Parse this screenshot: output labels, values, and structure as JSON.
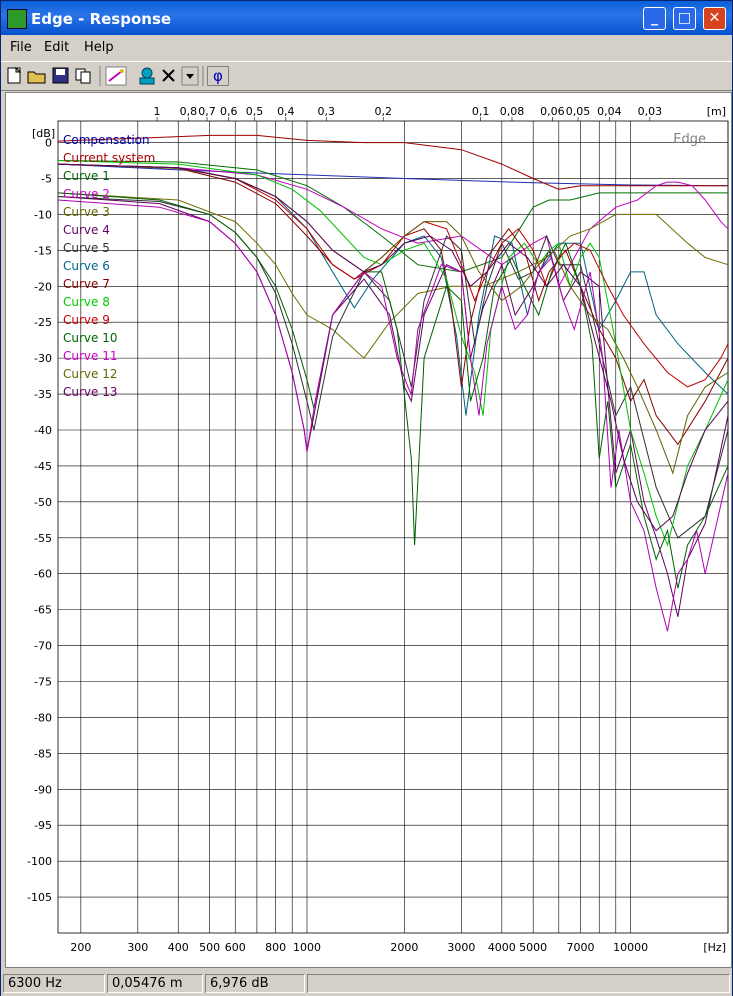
{
  "window": {
    "title": "Edge - Response"
  },
  "menu": [
    {
      "label": "File",
      "key": "F"
    },
    {
      "label": "Edit",
      "key": "E"
    },
    {
      "label": "Help",
      "key": "H"
    }
  ],
  "toolbar": {
    "phi_label": "φ"
  },
  "chart": {
    "watermark": "Edge",
    "y_unit": "[dB]",
    "x_unit": "[Hz]",
    "top_unit": "[m]"
  },
  "legend": [
    {
      "name": "Compensation",
      "color": "#0000aa"
    },
    {
      "name": "Current system",
      "color": "#aa0000"
    },
    {
      "name": "Curve 1",
      "color": "#006600"
    },
    {
      "name": "Curve 2",
      "color": "#cc00cc"
    },
    {
      "name": "Curve 3",
      "color": "#666600"
    },
    {
      "name": "Curve 4",
      "color": "#660066"
    },
    {
      "name": "Curve 5",
      "color": "#333333"
    },
    {
      "name": "Curve 6",
      "color": "#006688"
    },
    {
      "name": "Curve 7",
      "color": "#880000"
    },
    {
      "name": "Curve 8",
      "color": "#00cc00"
    },
    {
      "name": "Curve 9",
      "color": "#cc0000"
    },
    {
      "name": "Curve 10",
      "color": "#006600"
    },
    {
      "name": "Curve 11",
      "color": "#cc00cc"
    },
    {
      "name": "Curve 12",
      "color": "#666600"
    },
    {
      "name": "Curve 13",
      "color": "#660066"
    }
  ],
  "chart_data": {
    "type": "line",
    "xlabel": "[Hz]",
    "ylabel": "[dB]",
    "xscale": "log",
    "xlim": [
      170,
      20000
    ],
    "ylim": [
      -110,
      3
    ],
    "grid": true,
    "x_ticks": [
      {
        "v": 200,
        "t": "200"
      },
      {
        "v": 300,
        "t": "300"
      },
      {
        "v": 400,
        "t": "400"
      },
      {
        "v": 500,
        "t": "500"
      },
      {
        "v": 600,
        "t": "600"
      },
      {
        "v": 800,
        "t": "800"
      },
      {
        "v": 1000,
        "t": "1000"
      },
      {
        "v": 2000,
        "t": "2000"
      },
      {
        "v": 3000,
        "t": "3000"
      },
      {
        "v": 4000,
        "t": "4000"
      },
      {
        "v": 5000,
        "t": "5000"
      },
      {
        "v": 7000,
        "t": "7000"
      },
      {
        "v": 10000,
        "t": "10000"
      }
    ],
    "x_minor": [
      700,
      900,
      6000,
      8000,
      9000,
      20000
    ],
    "top_ticks": [
      {
        "v": 344,
        "t": "1"
      },
      {
        "v": 430,
        "t": "0,8"
      },
      {
        "v": 491,
        "t": "0,7"
      },
      {
        "v": 573,
        "t": "0,6"
      },
      {
        "v": 688,
        "t": "0,5"
      },
      {
        "v": 860,
        "t": "0,4"
      },
      {
        "v": 1147,
        "t": "0,3"
      },
      {
        "v": 1720,
        "t": "0,2"
      },
      {
        "v": 3440,
        "t": "0,1"
      },
      {
        "v": 4300,
        "t": "0,08"
      },
      {
        "v": 5733,
        "t": "0,06"
      },
      {
        "v": 6880,
        "t": "0,05"
      },
      {
        "v": 8600,
        "t": "0,04"
      },
      {
        "v": 11467,
        "t": "0,03"
      }
    ],
    "y_ticks": [
      0,
      -5,
      -10,
      -15,
      -20,
      -25,
      -30,
      -35,
      -40,
      -45,
      -50,
      -55,
      -60,
      -65,
      -70,
      -75,
      -80,
      -85,
      -90,
      -95,
      -100,
      -105
    ],
    "y_tick_labels": [
      "0",
      "-5",
      "-10",
      "-15",
      "-20",
      "-25",
      "-30",
      "-35",
      "-40",
      "-45",
      "-50",
      "-55",
      "-60",
      "-65",
      "-70",
      "-75",
      "-80",
      "-85",
      "-90",
      "-95",
      "-100",
      "-105"
    ],
    "series": [
      {
        "name": "Compensation",
        "color": "#1e2fb0",
        "x": [
          170,
          400,
          1000,
          2000,
          5000,
          10000,
          20000
        ],
        "y": [
          -3,
          -3.8,
          -4.5,
          -5,
          -5.6,
          -5.9,
          -6
        ]
      },
      {
        "name": "Current system",
        "color": "#a00000",
        "x": [
          170,
          300,
          500,
          700,
          1000,
          1500,
          2000,
          3000,
          4000,
          5000,
          6000,
          7000,
          9000,
          12000,
          15000,
          20000
        ],
        "y": [
          0.2,
          0.6,
          1,
          1,
          0.3,
          0,
          0,
          -1,
          -3,
          -5,
          -6.5,
          -6,
          -6,
          -6,
          -6,
          -6
        ]
      },
      {
        "name": "Curve 1",
        "color": "#007000",
        "x": [
          170,
          400,
          700,
          1000,
          1300,
          1700,
          2200,
          3000,
          4000,
          5000,
          5600,
          6500,
          8000,
          10000,
          14000,
          20000
        ],
        "y": [
          -2.5,
          -2.7,
          -3.8,
          -6,
          -9,
          -13,
          -17,
          -18,
          -16,
          -9,
          -8,
          -8,
          -7,
          -7,
          -7,
          -7
        ]
      },
      {
        "name": "Curve 2",
        "color": "#c000c0",
        "x": [
          170,
          400,
          700,
          1000,
          1300,
          1700,
          2200,
          3000,
          4000,
          5000,
          5500,
          6000,
          6700,
          7500,
          9000,
          10500,
          12000,
          13000,
          14000,
          15500,
          17000,
          19000,
          20000
        ],
        "y": [
          -3,
          -3.5,
          -4.5,
          -6.5,
          -9,
          -12,
          -14,
          -13,
          -17,
          -14,
          -13,
          -20,
          -16,
          -12,
          -9,
          -8,
          -6,
          -5.5,
          -5.5,
          -6,
          -8,
          -11,
          -12
        ]
      },
      {
        "name": "Curve 3",
        "color": "#707000",
        "x": [
          170,
          400,
          600,
          700,
          800,
          900,
          1000,
          1200,
          1500,
          1800,
          2200,
          2800,
          3500,
          4500,
          5500,
          6500,
          7500,
          9000,
          10000,
          12000,
          15000,
          17000,
          20000
        ],
        "y": [
          -7,
          -8,
          -11,
          -14,
          -17,
          -21,
          -24,
          -26,
          -30,
          -25,
          -21,
          -20,
          -20,
          -18,
          -16,
          -13,
          -12,
          -10,
          -10,
          -10,
          -14,
          -16,
          -17
        ]
      },
      {
        "name": "Curve 4",
        "color": "#600060",
        "x": [
          170,
          350,
          500,
          600,
          700,
          800,
          900,
          980,
          1000,
          1050,
          1200,
          1500,
          1800,
          2000,
          2100,
          2300,
          2700,
          3000,
          3200,
          3500,
          4000,
          4400,
          5000,
          5600,
          6200,
          7000,
          8000,
          8500,
          9000,
          10000,
          11000,
          12000,
          13000,
          14000,
          15000,
          17000,
          20000
        ],
        "y": [
          -7.5,
          -8.5,
          -11,
          -14,
          -18,
          -24,
          -32,
          -40,
          -43,
          -38,
          -24,
          -19,
          -24,
          -34,
          -36,
          -24,
          -17,
          -18,
          -30,
          -23,
          -17,
          -24,
          -20,
          -15,
          -22,
          -18,
          -20,
          -34,
          -46,
          -40,
          -50,
          -55,
          -60,
          -66,
          -58,
          -53,
          -38
        ]
      },
      {
        "name": "Curve 5",
        "color": "#303030",
        "x": [
          170,
          350,
          500,
          600,
          700,
          800,
          900,
          1000,
          1050,
          1200,
          1500,
          1800,
          2000,
          2100,
          2300,
          2700,
          3000,
          3300,
          3600,
          4000,
          4500,
          5000,
          5500,
          6000,
          7000,
          8000,
          9000,
          10000,
          12000,
          14000,
          17000,
          20000
        ],
        "y": [
          -7.5,
          -8.2,
          -10,
          -12.5,
          -16,
          -21,
          -28,
          -36,
          -40,
          -27,
          -18,
          -22,
          -30,
          -34,
          -22,
          -13,
          -15,
          -28,
          -20,
          -14,
          -19,
          -18,
          -13,
          -17,
          -17,
          -28,
          -38,
          -34,
          -48,
          -55,
          -52,
          -40
        ]
      },
      {
        "name": "Curve 6",
        "color": "#006080",
        "x": [
          170,
          400,
          600,
          800,
          1000,
          1200,
          1400,
          1600,
          2000,
          2300,
          2600,
          2900,
          3100,
          3400,
          3800,
          4300,
          4800,
          5200,
          6000,
          7000,
          8000,
          9000,
          10000,
          11000,
          12000,
          14000,
          17000,
          20000
        ],
        "y": [
          -3,
          -3.5,
          -5,
          -7.5,
          -12,
          -18,
          -23,
          -19,
          -14,
          -13,
          -16,
          -27,
          -38,
          -24,
          -13,
          -14,
          -24,
          -18,
          -14,
          -14,
          -26,
          -22,
          -18,
          -18,
          -24,
          -28,
          -32,
          -35
        ]
      },
      {
        "name": "Curve 7",
        "color": "#880000",
        "x": [
          170,
          400,
          600,
          800,
          1000,
          1200,
          1400,
          1700,
          2000,
          2300,
          2600,
          2800,
          3000,
          3200,
          3600,
          4200,
          4700,
          5200,
          5600,
          6300,
          7000,
          8000,
          9000,
          10000,
          11000,
          12000,
          14000,
          17000,
          20000
        ],
        "y": [
          -3,
          -3.6,
          -5.5,
          -8.5,
          -13,
          -17,
          -19,
          -16,
          -13,
          -12,
          -15,
          -23,
          -34,
          -25,
          -16,
          -12,
          -15,
          -22,
          -18,
          -15,
          -20,
          -26,
          -30,
          -36,
          -33,
          -38,
          -42,
          -36,
          -30
        ]
      },
      {
        "name": "Curve 8",
        "color": "#00c000",
        "x": [
          170,
          400,
          700,
          900,
          1100,
          1300,
          1500,
          1700,
          2000,
          2300,
          2700,
          3000,
          3300,
          3500,
          3700,
          4200,
          4700,
          5200,
          5600,
          6000,
          6500,
          7000,
          7500,
          8000,
          9000,
          10000,
          11000,
          12000,
          13000,
          15000,
          17000,
          20000
        ],
        "y": [
          -2.5,
          -3,
          -4.5,
          -6.5,
          -9.5,
          -13,
          -16,
          -17,
          -15,
          -14,
          -19,
          -27,
          -32,
          -38,
          -26,
          -16,
          -14,
          -17,
          -15,
          -14,
          -20,
          -16,
          -14,
          -16,
          -28,
          -40,
          -46,
          -52,
          -56,
          -45,
          -40,
          -33
        ]
      },
      {
        "name": "Curve 9",
        "color": "#c00000",
        "x": [
          170,
          400,
          600,
          800,
          1000,
          1200,
          1400,
          1700,
          2000,
          2300,
          2700,
          3000,
          3300,
          3600,
          4000,
          4500,
          5000,
          5500,
          6000,
          6700,
          7500,
          8500,
          9500,
          11000,
          13000,
          15000,
          17000,
          19000,
          20000
        ],
        "y": [
          -3,
          -3.5,
          -5,
          -8,
          -12,
          -17,
          -19,
          -17,
          -13,
          -11,
          -12,
          -17,
          -22,
          -18,
          -14,
          -12,
          -15,
          -20,
          -16,
          -14,
          -15,
          -20,
          -24,
          -28,
          -32,
          -34,
          -33,
          -30,
          -28
        ]
      },
      {
        "name": "Curve 10",
        "color": "#006000",
        "x": [
          170,
          350,
          500,
          600,
          700,
          800,
          900,
          1000,
          1050,
          1200,
          1500,
          1700,
          1900,
          2100,
          2150,
          2300,
          2700,
          3000,
          3200,
          3500,
          3800,
          4300,
          4700,
          5200,
          5700,
          6300,
          7000,
          7600,
          8000,
          8500,
          9000,
          10000,
          11000,
          12000,
          13000,
          14000,
          15000,
          17000,
          20000
        ],
        "y": [
          -7,
          -8,
          -10,
          -12.5,
          -16,
          -20,
          -26,
          -33,
          -37,
          -24,
          -18,
          -18,
          -26,
          -44,
          -56,
          -30,
          -20,
          -22,
          -36,
          -30,
          -20,
          -16,
          -20,
          -24,
          -18,
          -14,
          -20,
          -28,
          -44,
          -36,
          -48,
          -42,
          -52,
          -58,
          -54,
          -62,
          -56,
          -52,
          -45
        ]
      },
      {
        "name": "Curve 11",
        "color": "#b000b0",
        "x": [
          170,
          350,
          500,
          600,
          700,
          800,
          900,
          980,
          1000,
          1060,
          1200,
          1500,
          1700,
          1900,
          2050,
          2100,
          2200,
          2600,
          3000,
          3200,
          3400,
          3600,
          4000,
          4400,
          4800,
          5200,
          5700,
          6200,
          6700,
          7500,
          8200,
          8700,
          9200,
          10000,
          11000,
          12000,
          13000,
          14000,
          15000,
          16000,
          17000,
          20000
        ],
        "y": [
          -8,
          -9,
          -11,
          -14,
          -18,
          -24,
          -32,
          -40,
          -43,
          -36,
          -24,
          -18,
          -20,
          -30,
          -34,
          -35,
          -26,
          -17,
          -18,
          -30,
          -38,
          -28,
          -20,
          -26,
          -24,
          -18,
          -16,
          -22,
          -26,
          -18,
          -30,
          -48,
          -40,
          -50,
          -54,
          -62,
          -68,
          -60,
          -58,
          -54,
          -60,
          -46
        ]
      },
      {
        "name": "Curve 12",
        "color": "#606000",
        "x": [
          170,
          400,
          600,
          800,
          1000,
          1200,
          1500,
          1700,
          2000,
          2300,
          2700,
          3000,
          3400,
          4000,
          4600,
          5200,
          5800,
          6500,
          7500,
          8500,
          9500,
          10500,
          12000,
          13500,
          15000,
          17000,
          20000
        ],
        "y": [
          -3,
          -3.6,
          -5,
          -7.5,
          -11,
          -15,
          -18,
          -16,
          -13,
          -11,
          -11,
          -13,
          -18,
          -22,
          -20,
          -17,
          -15,
          -20,
          -24,
          -26,
          -30,
          -34,
          -40,
          -46,
          -38,
          -34,
          -32
        ]
      },
      {
        "name": "Curve 13",
        "color": "#5a005a",
        "x": [
          170,
          400,
          600,
          800,
          1000,
          1200,
          1500,
          1700,
          2000,
          2400,
          2800,
          3200,
          3600,
          4200,
          4800,
          5500,
          6200,
          7000,
          7800,
          8700,
          9500,
          10500,
          12000,
          13500,
          15000,
          17000,
          20000
        ],
        "y": [
          -3,
          -3.5,
          -5,
          -7.5,
          -11,
          -15,
          -18,
          -17,
          -14,
          -13,
          -15,
          -20,
          -18,
          -14,
          -16,
          -20,
          -17,
          -20,
          -28,
          -36,
          -44,
          -50,
          -54,
          -52,
          -46,
          -40,
          -36
        ]
      }
    ]
  },
  "status": {
    "freq": "6300 Hz",
    "dist": "0,05476 m",
    "level": "6,976 dB"
  }
}
